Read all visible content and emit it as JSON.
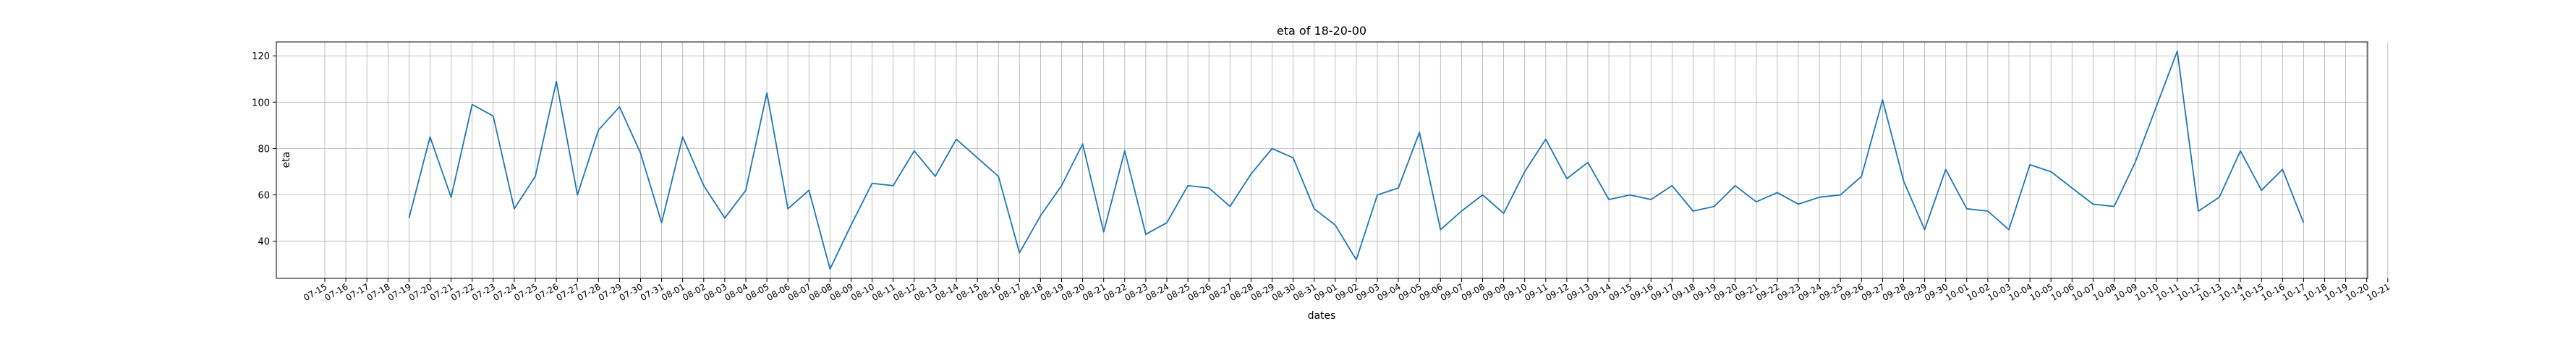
{
  "chart_data": {
    "type": "line",
    "title": "eta of 18-20-00",
    "xlabel": "dates",
    "ylabel": "eta",
    "grid": true,
    "x_tick_labels": [
      "07-15",
      "07-16",
      "07-17",
      "07-18",
      "07-19",
      "07-20",
      "07-21",
      "07-22",
      "07-23",
      "07-24",
      "07-25",
      "07-26",
      "07-27",
      "07-28",
      "07-29",
      "07-30",
      "07-31",
      "08-01",
      "08-02",
      "08-03",
      "08-04",
      "08-05",
      "08-06",
      "08-07",
      "08-08",
      "08-09",
      "08-10",
      "08-11",
      "08-12",
      "08-13",
      "08-14",
      "08-15",
      "08-16",
      "08-17",
      "08-18",
      "08-19",
      "08-20",
      "08-21",
      "08-22",
      "08-23",
      "08-24",
      "08-25",
      "08-26",
      "08-27",
      "08-28",
      "08-29",
      "08-30",
      "08-31",
      "09-01",
      "09-02",
      "09-03",
      "09-04",
      "09-05",
      "09-06",
      "09-07",
      "09-08",
      "09-09",
      "09-10",
      "09-11",
      "09-12",
      "09-13",
      "09-14",
      "09-15",
      "09-16",
      "09-17",
      "09-18",
      "09-19",
      "09-20",
      "09-21",
      "09-22",
      "09-23",
      "09-24",
      "09-25",
      "09-26",
      "09-27",
      "09-28",
      "09-29",
      "09-30",
      "10-01",
      "10-02",
      "10-03",
      "10-04",
      "10-05",
      "10-06",
      "10-07",
      "10-08",
      "10-09",
      "10-10",
      "10-11",
      "10-12",
      "10-13",
      "10-14",
      "10-15",
      "10-16",
      "10-17",
      "10-18",
      "10-19",
      "10-20",
      "10-21"
    ],
    "y_ticks": [
      40,
      60,
      80,
      100,
      120
    ],
    "ylim": [
      24,
      126
    ],
    "series": [
      {
        "color": "#1f77b4",
        "x": [
          "07-19",
          "07-20",
          "07-21",
          "07-22",
          "07-23",
          "07-24",
          "07-25",
          "07-26",
          "07-27",
          "07-28",
          "07-29",
          "07-30",
          "07-31",
          "08-01",
          "08-02",
          "08-03",
          "08-04",
          "08-05",
          "08-06",
          "08-07",
          "08-08",
          "08-09",
          "08-10",
          "08-11",
          "08-12",
          "08-13",
          "08-14",
          "08-15",
          "08-16",
          "08-17",
          "08-18",
          "08-19",
          "08-20",
          "08-21",
          "08-22",
          "08-23",
          "08-24",
          "08-25",
          "08-26",
          "08-27",
          "08-28",
          "08-29",
          "08-30",
          "08-31",
          "09-01",
          "09-02",
          "09-03",
          "09-04",
          "09-05",
          "09-06",
          "09-07",
          "09-08",
          "09-09",
          "09-10",
          "09-11",
          "09-12",
          "09-13",
          "09-14",
          "09-15",
          "09-16",
          "09-17",
          "09-18",
          "09-19",
          "09-20",
          "09-21",
          "09-22",
          "09-23",
          "09-24",
          "09-25",
          "09-26",
          "09-27",
          "09-28",
          "09-29",
          "09-30",
          "10-01",
          "10-02",
          "10-03",
          "10-04",
          "10-05",
          "10-06",
          "10-07",
          "10-08",
          "10-09",
          "10-10",
          "10-11",
          "10-12",
          "10-13",
          "10-14",
          "10-15",
          "10-16",
          "10-17"
        ],
        "values": [
          50,
          85,
          59,
          99,
          94,
          54,
          68,
          109,
          60,
          88,
          98,
          78,
          48,
          85,
          64,
          50,
          62,
          104,
          54,
          62,
          28,
          47,
          65,
          64,
          79,
          68,
          84,
          76,
          68,
          35,
          51,
          64,
          82,
          44,
          79,
          43,
          48,
          64,
          63,
          55,
          69,
          80,
          76,
          54,
          47,
          32,
          60,
          63,
          87,
          45,
          53,
          60,
          52,
          70,
          84,
          67,
          74,
          58,
          60,
          58,
          64,
          53,
          55,
          64,
          57,
          61,
          56,
          59,
          60,
          68,
          101,
          66,
          45,
          71,
          54,
          53,
          45,
          73,
          70,
          63,
          56,
          55,
          74,
          98,
          122,
          53,
          59,
          79,
          62,
          71,
          48
        ]
      }
    ]
  }
}
